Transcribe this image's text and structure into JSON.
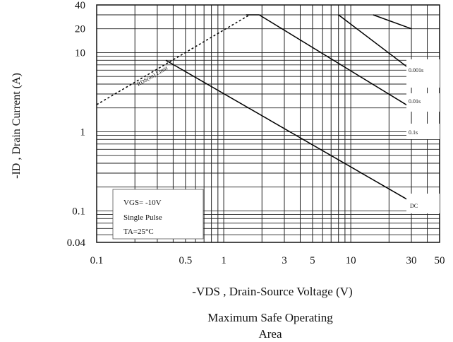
{
  "chart_data": {
    "type": "line",
    "title_line1": "Maximum Safe Operating",
    "title_line2": "Area",
    "xlabel": "-VDS , Drain-Source Voltage (V)",
    "ylabel": "-ID , Drain Current (A)",
    "xscale": "log",
    "yscale": "log",
    "xlim": [
      0.1,
      50
    ],
    "ylim": [
      0.04,
      40
    ],
    "grid": true,
    "x_ticks": [
      "0.1",
      "0.5",
      "1",
      "3",
      "5",
      "10",
      "30",
      "50"
    ],
    "y_ticks": [
      "0.04",
      "0.1",
      "1",
      "10",
      "20",
      "40"
    ],
    "annotations": {
      "conditions": [
        "VGS= -10V",
        "Single Pulse",
        "TA=25°C"
      ],
      "rds_limit": "RDS(on) Limit",
      "series_labels": [
        "0.001s",
        "0.01s",
        "0.1s",
        "DC"
      ]
    },
    "series": [
      {
        "name": "RDS(on) Limit",
        "style": "dashed",
        "x": [
          0.1,
          1.6
        ],
        "y": [
          2.2,
          30
        ]
      },
      {
        "name": "0.001s",
        "x": [
          15,
          30
        ],
        "y": [
          30,
          20
        ]
      },
      {
        "name": "0.01s",
        "x": [
          8,
          30
        ],
        "y": [
          30,
          6
        ]
      },
      {
        "name": "0.1s",
        "x": [
          1.5,
          1.9,
          30
        ],
        "y": [
          30,
          30,
          2
        ]
      },
      {
        "name": "DC",
        "x": [
          0.35,
          30
        ],
        "y": [
          8,
          0.13
        ]
      }
    ]
  }
}
